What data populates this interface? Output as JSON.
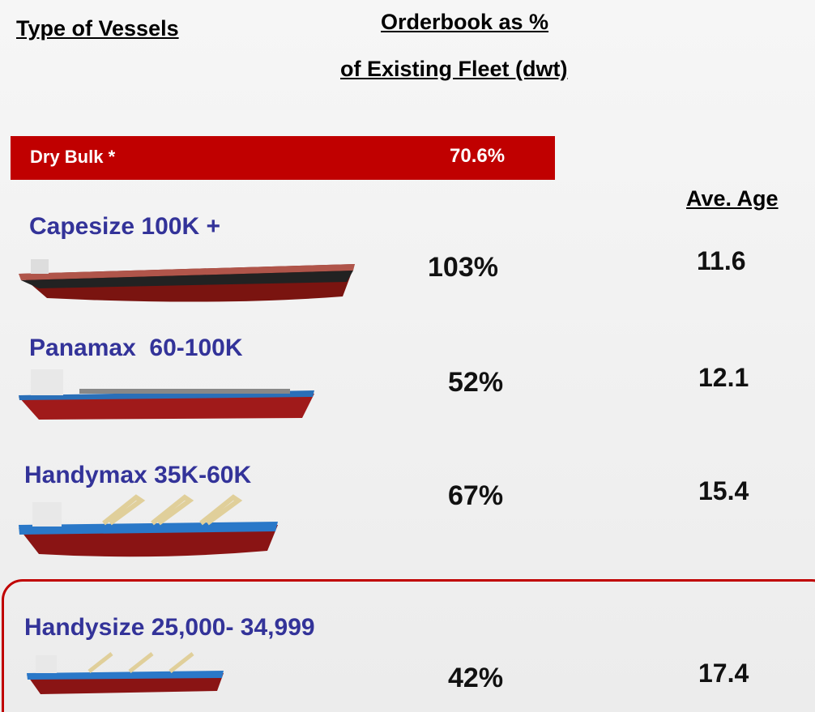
{
  "header": {
    "type_col": "Type of Vessels",
    "orderbook_line1": "Orderbook as %",
    "orderbook_line2": "of Existing Fleet (dwt)",
    "age_col": "Ave. Age"
  },
  "summary": {
    "label": "Dry Bulk *",
    "value": "70.6%"
  },
  "vessels": [
    {
      "name": "Capesize 100K +",
      "orderbook": "103%",
      "age": "11.6"
    },
    {
      "name": "Panamax  60-100K",
      "orderbook": "52%",
      "age": "12.1"
    },
    {
      "name": "Handymax 35K-60K",
      "orderbook": "67%",
      "age": "15.4"
    },
    {
      "name": "Handysize 25,000- 34,999",
      "orderbook": "42%",
      "age": "17.4"
    }
  ]
}
